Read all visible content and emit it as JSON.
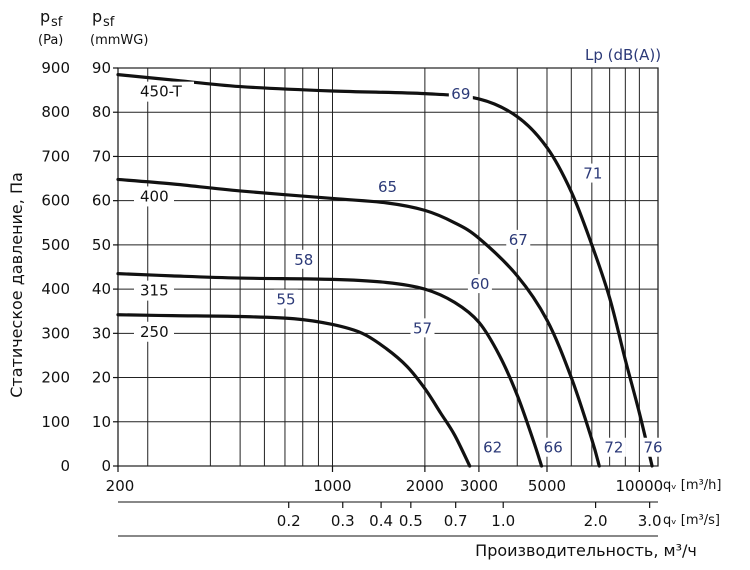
{
  "chart_data": {
    "type": "line",
    "title": "",
    "xlabel": "Производительность, м³/ч",
    "ylabel": "Статическое давление, Па",
    "x_unit_label_1": "qᵥ [m³/h]",
    "x_unit_label_2": "qᵥ [m³/s]",
    "y_header_pa": {
      "symbol": "p",
      "sub": "sf",
      "unit": "(Pa)"
    },
    "y_header_mmwg": {
      "symbol": "p",
      "sub": "sf",
      "unit": "(mmWG)"
    },
    "noise_header": "Lp (dB(A))",
    "x_scale": "log",
    "xlim": [
      200,
      11500
    ],
    "ylim": [
      0,
      900
    ],
    "grid": true,
    "x_ticks_m3h": [
      {
        "value": 200,
        "label": "200"
      },
      {
        "value": 1000,
        "label": "1000"
      },
      {
        "value": 2000,
        "label": "2000"
      },
      {
        "value": 3000,
        "label": "3000"
      },
      {
        "value": 5000,
        "label": "5000"
      },
      {
        "value": 10000,
        "label": "10000"
      }
    ],
    "x_ticks_m3s": [
      {
        "value": 0.2,
        "label": "0.2"
      },
      {
        "value": 0.3,
        "label": "0.3"
      },
      {
        "value": 0.4,
        "label": "0.4"
      },
      {
        "value": 0.5,
        "label": "0.5"
      },
      {
        "value": 0.7,
        "label": "0.7"
      },
      {
        "value": 1.0,
        "label": "1.0"
      },
      {
        "value": 2.0,
        "label": "2.0"
      },
      {
        "value": 3.0,
        "label": "3.0"
      }
    ],
    "vertical_gridlines_m3h": [
      250,
      400,
      500,
      600,
      700,
      800,
      900,
      1000,
      2000,
      3000,
      4000,
      5000,
      6000,
      7000,
      8000,
      9000,
      10000
    ],
    "y_ticks_pa": [
      {
        "value": 0,
        "label": "0"
      },
      {
        "value": 100,
        "label": "100"
      },
      {
        "value": 200,
        "label": "200"
      },
      {
        "value": 300,
        "label": "300"
      },
      {
        "value": 400,
        "label": "400"
      },
      {
        "value": 500,
        "label": "500"
      },
      {
        "value": 600,
        "label": "600"
      },
      {
        "value": 700,
        "label": "700"
      },
      {
        "value": 800,
        "label": "800"
      },
      {
        "value": 900,
        "label": "900"
      }
    ],
    "y_ticks_mmwg": [
      {
        "value": 0,
        "label": "0"
      },
      {
        "value": 10,
        "label": "10"
      },
      {
        "value": 20,
        "label": "20"
      },
      {
        "value": 30,
        "label": "30"
      },
      {
        "value": 40,
        "label": "40"
      },
      {
        "value": 50,
        "label": "50"
      },
      {
        "value": 60,
        "label": "60"
      },
      {
        "value": 70,
        "label": "70"
      },
      {
        "value": 80,
        "label": "80"
      },
      {
        "value": 90,
        "label": "90"
      }
    ],
    "series": [
      {
        "name": "450-T",
        "points": [
          [
            200,
            885
          ],
          [
            300,
            873
          ],
          [
            500,
            858
          ],
          [
            1000,
            848
          ],
          [
            2000,
            842
          ],
          [
            3000,
            830
          ],
          [
            4000,
            790
          ],
          [
            5000,
            720
          ],
          [
            6000,
            620
          ],
          [
            7000,
            500
          ],
          [
            8000,
            380
          ],
          [
            9000,
            240
          ],
          [
            10000,
            120
          ],
          [
            11000,
            0
          ]
        ],
        "noise_labels": [
          {
            "x": 2600,
            "y": 830,
            "text": "69"
          },
          {
            "x": 7000,
            "y": 650,
            "text": "71"
          },
          {
            "x": 11000,
            "y": 30,
            "text": "76"
          }
        ]
      },
      {
        "name": "400",
        "points": [
          [
            200,
            648
          ],
          [
            300,
            638
          ],
          [
            500,
            622
          ],
          [
            1000,
            605
          ],
          [
            1500,
            595
          ],
          [
            2000,
            578
          ],
          [
            2500,
            550
          ],
          [
            3000,
            515
          ],
          [
            4000,
            430
          ],
          [
            5000,
            330
          ],
          [
            6000,
            200
          ],
          [
            7000,
            60
          ],
          [
            7400,
            0
          ]
        ],
        "noise_labels": [
          {
            "x": 1500,
            "y": 620,
            "text": "65"
          },
          {
            "x": 4000,
            "y": 500,
            "text": "67"
          },
          {
            "x": 8200,
            "y": 30,
            "text": "72"
          }
        ]
      },
      {
        "name": "315",
        "points": [
          [
            200,
            435
          ],
          [
            300,
            430
          ],
          [
            500,
            425
          ],
          [
            1000,
            422
          ],
          [
            1500,
            415
          ],
          [
            2000,
            400
          ],
          [
            2500,
            370
          ],
          [
            3000,
            325
          ],
          [
            3500,
            250
          ],
          [
            4000,
            160
          ],
          [
            4500,
            60
          ],
          [
            4800,
            0
          ]
        ],
        "noise_labels": [
          {
            "x": 800,
            "y": 455,
            "text": "58"
          },
          {
            "x": 3000,
            "y": 400,
            "text": "60"
          },
          {
            "x": 5200,
            "y": 30,
            "text": "66"
          }
        ]
      },
      {
        "name": "250",
        "points": [
          [
            200,
            342
          ],
          [
            300,
            340
          ],
          [
            500,
            338
          ],
          [
            750,
            333
          ],
          [
            1000,
            320
          ],
          [
            1250,
            300
          ],
          [
            1500,
            265
          ],
          [
            1750,
            225
          ],
          [
            2000,
            175
          ],
          [
            2250,
            120
          ],
          [
            2500,
            70
          ],
          [
            2800,
            0
          ]
        ],
        "noise_labels": [
          {
            "x": 700,
            "y": 365,
            "text": "55"
          },
          {
            "x": 1950,
            "y": 300,
            "text": "57"
          },
          {
            "x": 3300,
            "y": 30,
            "text": "62"
          }
        ]
      }
    ]
  }
}
